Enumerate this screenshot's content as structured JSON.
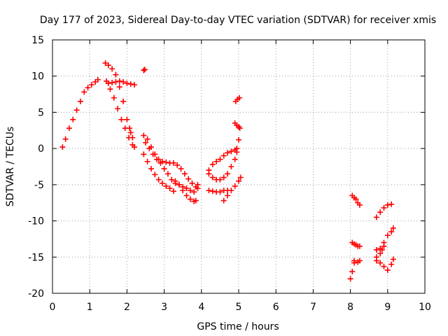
{
  "chart_data": {
    "type": "scatter",
    "title": "Day 177 of 2023, Sidereal Day-to-day VTEC variation (SDTVAR) for receiver xmis",
    "xlabel": "GPS time / hours",
    "ylabel": "SDTVAR / TECUs",
    "xlim": [
      0,
      10
    ],
    "ylim": [
      -20,
      15
    ],
    "xticks": [
      0,
      1,
      2,
      3,
      4,
      5,
      6,
      7,
      8,
      9,
      10
    ],
    "yticks": [
      -20,
      -15,
      -10,
      -5,
      0,
      5,
      10,
      15
    ],
    "grid": true,
    "marker": "plus",
    "color": "#ff0000",
    "series": [
      {
        "x": [
          0.27,
          0.35,
          0.45,
          0.55,
          0.65,
          0.75,
          0.85,
          0.95,
          1.05,
          1.15,
          1.22
        ],
        "y": [
          0.2,
          1.3,
          2.8,
          4.0,
          5.3,
          6.5,
          7.8,
          8.4,
          8.8,
          9.2,
          9.5
        ]
      },
      {
        "x": [
          1.42,
          1.5,
          1.6,
          1.7,
          1.8,
          1.9,
          2.0,
          2.07,
          2.1,
          2.15
        ],
        "y": [
          11.8,
          11.5,
          11.0,
          10.2,
          8.5,
          6.5,
          4.0,
          2.8,
          2.2,
          1.5
        ]
      },
      {
        "x": [
          1.45,
          1.55,
          1.65,
          1.75,
          1.85,
          1.95,
          2.05,
          2.15,
          2.2
        ],
        "y": [
          9.3,
          8.2,
          7.0,
          5.5,
          4.0,
          2.8,
          1.5,
          0.5,
          0.2
        ]
      },
      {
        "x": [
          1.5,
          1.6,
          1.7,
          1.8,
          1.9,
          2.0,
          2.1,
          2.2
        ],
        "y": [
          9.0,
          9.1,
          9.2,
          9.3,
          9.2,
          9.0,
          8.9,
          8.8
        ]
      },
      {
        "x": [
          2.45,
          2.48
        ],
        "y": [
          10.8,
          10.9
        ]
      },
      {
        "x": [
          2.45,
          2.55,
          2.65,
          2.75,
          2.85,
          2.95,
          3.05,
          3.15,
          3.25,
          3.35,
          3.45,
          3.55,
          3.65,
          3.75,
          3.85,
          3.9
        ],
        "y": [
          1.8,
          1.3,
          0.2,
          -0.8,
          -1.5,
          -1.8,
          -1.9,
          -2.0,
          -2.0,
          -2.3,
          -2.8,
          -3.5,
          -4.2,
          -4.8,
          -5.3,
          -5.5
        ]
      },
      {
        "x": [
          2.5,
          2.6,
          2.7,
          2.8,
          2.9,
          3.0,
          3.1,
          3.2,
          3.3,
          3.4,
          3.5,
          3.6,
          3.7,
          3.8,
          3.9
        ],
        "y": [
          0.8,
          0.0,
          -0.8,
          -1.5,
          -2.0,
          -2.8,
          -3.5,
          -4.3,
          -4.8,
          -5.0,
          -5.3,
          -5.5,
          -5.8,
          -6.0,
          -5.0
        ]
      },
      {
        "x": [
          2.45,
          2.55,
          2.65,
          2.75,
          2.85,
          2.95,
          3.05,
          3.15,
          3.25
        ],
        "y": [
          -0.8,
          -1.8,
          -2.8,
          -3.6,
          -4.3,
          -4.8,
          -5.2,
          -5.5,
          -5.9
        ]
      },
      {
        "x": [
          3.3,
          3.4,
          3.5,
          3.6,
          3.7,
          3.8,
          3.85
        ],
        "y": [
          -4.5,
          -5.0,
          -5.8,
          -6.5,
          -7.0,
          -7.3,
          -7.2
        ]
      },
      {
        "x": [
          4.2,
          4.3,
          4.4,
          4.5,
          4.6,
          4.7,
          4.8,
          4.9,
          4.95,
          5.0
        ],
        "y": [
          -3.5,
          -4.0,
          -4.3,
          -4.3,
          -4.0,
          -3.5,
          -2.5,
          -1.5,
          -0.5,
          1.2
        ]
      },
      {
        "x": [
          4.2,
          4.3,
          4.4,
          4.5,
          4.6,
          4.7,
          4.8,
          4.9,
          4.95
        ],
        "y": [
          -3.0,
          -2.2,
          -1.8,
          -1.5,
          -1.0,
          -0.6,
          -0.4,
          -0.2,
          0.0
        ]
      },
      {
        "x": [
          4.2,
          4.3,
          4.4,
          4.5,
          4.6,
          4.7
        ],
        "y": [
          -5.8,
          -5.9,
          -6.0,
          -6.0,
          -5.8,
          -5.8
        ]
      },
      {
        "x": [
          4.6,
          4.7,
          4.8,
          4.9,
          5.0,
          5.05
        ],
        "y": [
          -7.2,
          -6.5,
          -5.8,
          -5.2,
          -4.5,
          -4.0
        ]
      },
      {
        "x": [
          4.9,
          4.95,
          5.0,
          5.03
        ],
        "y": [
          3.5,
          3.2,
          3.0,
          2.8
        ]
      },
      {
        "x": [
          4.92,
          4.97,
          5.02
        ],
        "y": [
          6.5,
          6.8,
          7.0
        ]
      },
      {
        "x": [
          8.05,
          8.1,
          8.15,
          8.2,
          8.25
        ],
        "y": [
          -6.5,
          -6.8,
          -7.0,
          -7.5,
          -7.8
        ]
      },
      {
        "x": [
          8.05,
          8.1,
          8.15,
          8.2,
          8.25
        ],
        "y": [
          -13.0,
          -13.2,
          -13.3,
          -13.5,
          -13.5
        ]
      },
      {
        "x": [
          8.0,
          8.05,
          8.1
        ],
        "y": [
          -18.0,
          -17.0,
          -15.8
        ]
      },
      {
        "x": [
          8.1,
          8.2,
          8.25
        ],
        "y": [
          -15.5,
          -15.7,
          -15.5
        ]
      },
      {
        "x": [
          8.7,
          8.8,
          8.9,
          9.0,
          9.1
        ],
        "y": [
          -9.5,
          -8.8,
          -8.2,
          -7.8,
          -7.7
        ]
      },
      {
        "x": [
          8.7,
          8.8,
          8.9,
          9.0,
          9.1,
          9.15
        ],
        "y": [
          -14.0,
          -13.8,
          -13.0,
          -12.0,
          -11.5,
          -11.0
        ]
      },
      {
        "x": [
          8.7,
          8.8,
          8.9,
          9.0,
          9.1,
          9.15
        ],
        "y": [
          -15.5,
          -15.8,
          -16.3,
          -16.8,
          -16.0,
          -15.3
        ]
      },
      {
        "x": [
          8.7,
          8.8,
          8.85,
          8.9
        ],
        "y": [
          -15.0,
          -14.5,
          -14.0,
          -13.5
        ]
      }
    ]
  }
}
